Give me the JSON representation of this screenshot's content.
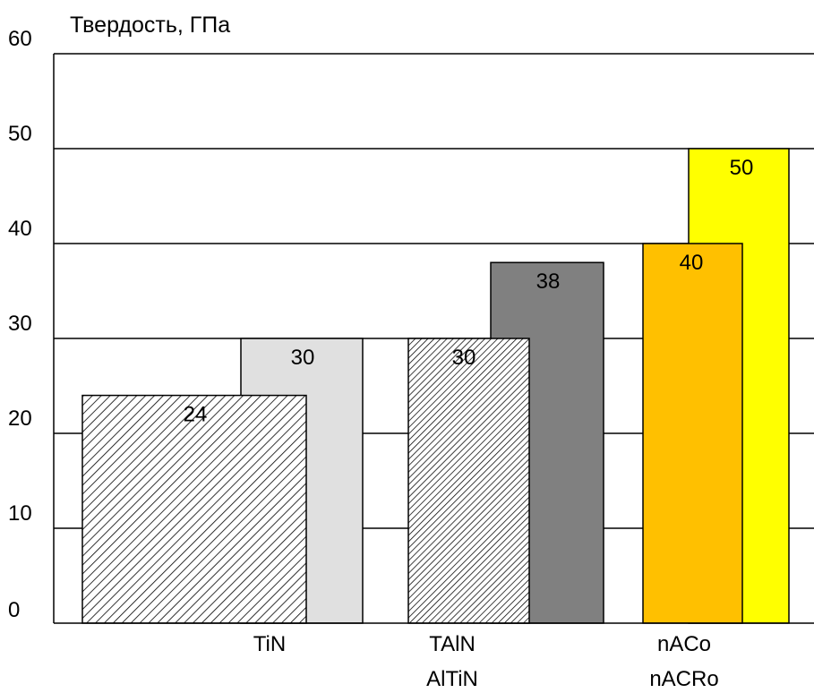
{
  "chart_data": {
    "type": "bar",
    "ylabel": "Твердость, ГПа",
    "ylim": [
      0,
      60
    ],
    "yticks": [
      "0",
      "10",
      "20",
      "30",
      "40",
      "50",
      "60"
    ],
    "grid": true,
    "categories": [
      {
        "label": "TiN"
      },
      {
        "label": "TAlN",
        "label2": "AlTiN"
      },
      {
        "label": "nACo",
        "label2": "nACRo"
      }
    ],
    "bars": [
      {
        "group": 0,
        "slot": 0,
        "value": 24,
        "label": "24",
        "fill": "hatch-wide"
      },
      {
        "group": 0,
        "slot": 1,
        "value": 30,
        "label": "30",
        "fill": "#e0e0e0"
      },
      {
        "group": 1,
        "slot": 0,
        "value": 30,
        "label": "30",
        "fill": "hatch-dense"
      },
      {
        "group": 1,
        "slot": 1,
        "value": 38,
        "label": "38",
        "fill": "#808080"
      },
      {
        "group": 2,
        "slot": 0,
        "value": 40,
        "label": "40",
        "fill": "#ffc000"
      },
      {
        "group": 2,
        "slot": 1,
        "value": 50,
        "label": "50",
        "fill": "#ffff00"
      }
    ]
  }
}
